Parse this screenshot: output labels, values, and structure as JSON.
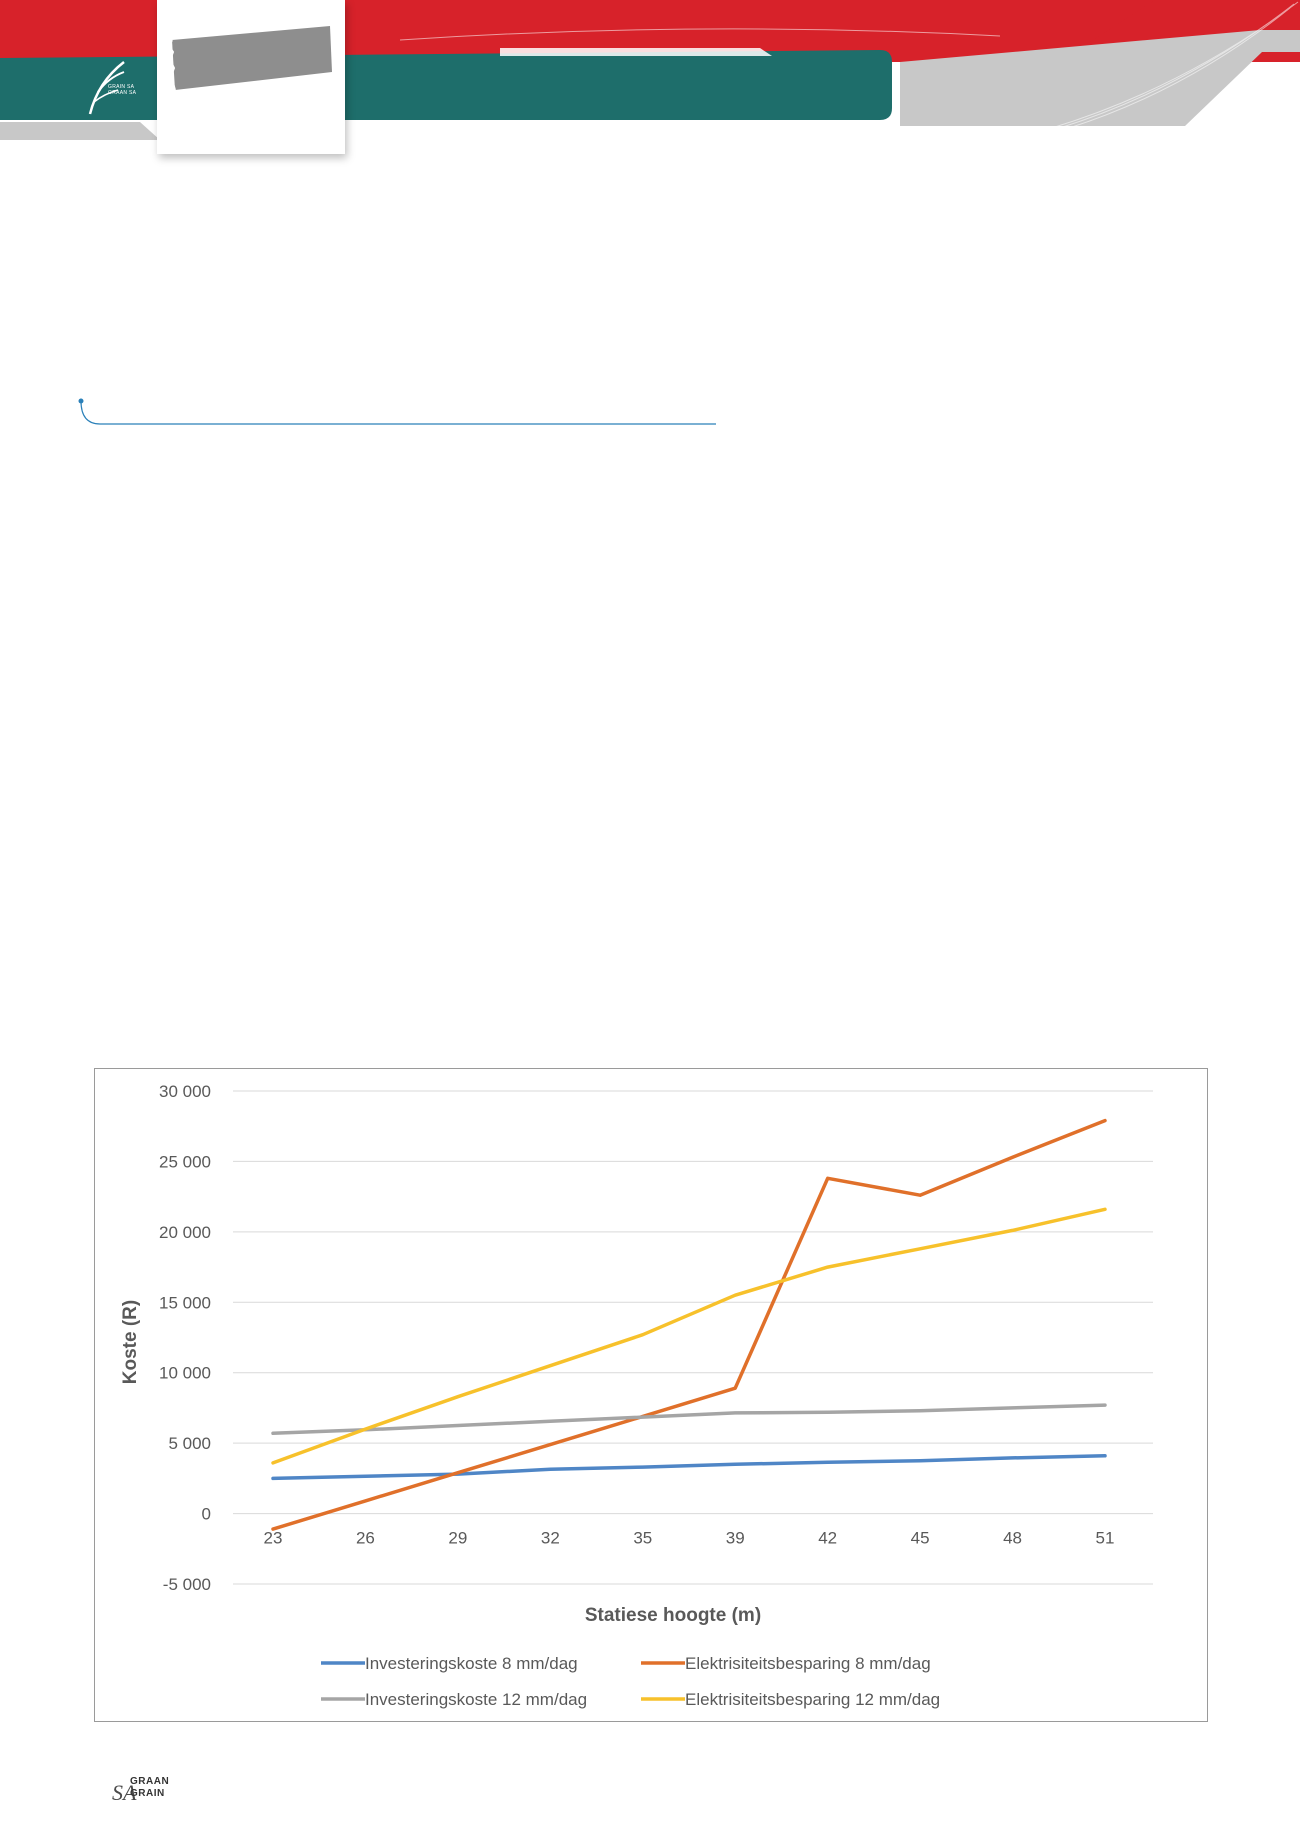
{
  "brand": {
    "logo_lines": [
      "GRAIN SA",
      "GRAAN SA"
    ],
    "footer_logo": {
      "prefix": "SA",
      "line1": "GRAAN",
      "line2": "GRAIN"
    }
  },
  "colors": {
    "red": "#d7222a",
    "teal": "#1e6e6b",
    "grey": "#c8c8c8",
    "series": [
      "#4f86c6",
      "#e0702a",
      "#a5a5a5",
      "#f7c12b"
    ]
  },
  "chart_data": {
    "type": "line",
    "title": "",
    "xlabel": "Statiese hoogte (m)",
    "ylabel": "Koste (R)",
    "ylim": [
      -5000,
      30000
    ],
    "y_ticks": [
      30000,
      25000,
      20000,
      15000,
      10000,
      5000,
      0,
      -5000
    ],
    "y_tick_labels": [
      "30 000",
      "25 000",
      "20 000",
      "15 000",
      "10 000",
      "5 000",
      "0",
      "-5 000"
    ],
    "categories": [
      "23",
      "26",
      "29",
      "32",
      "35",
      "39",
      "42",
      "45",
      "48",
      "51"
    ],
    "grid": true,
    "legend_position": "bottom",
    "series": [
      {
        "name": "Investeringskoste 8 mm/dag",
        "color": "#4f86c6",
        "values": [
          2500,
          2650,
          2800,
          3150,
          3300,
          3500,
          3650,
          3750,
          3950,
          4100
        ]
      },
      {
        "name": "Elektrisiteitsbesparing 8 mm/dag",
        "color": "#e0702a",
        "values": [
          -1100,
          900,
          2900,
          4900,
          6900,
          8900,
          23800,
          22600,
          25300,
          27900
        ]
      },
      {
        "name": "Investeringskoste 12 mm/dag",
        "color": "#a5a5a5",
        "values": [
          5700,
          5950,
          6250,
          6550,
          6850,
          7150,
          7200,
          7300,
          7500,
          7700
        ]
      },
      {
        "name": "Elektrisiteitsbesparing 12 mm/dag",
        "color": "#f7c12b",
        "values": [
          3600,
          6000,
          8300,
          10500,
          12700,
          15500,
          17500,
          18800,
          20100,
          21600
        ]
      }
    ]
  }
}
